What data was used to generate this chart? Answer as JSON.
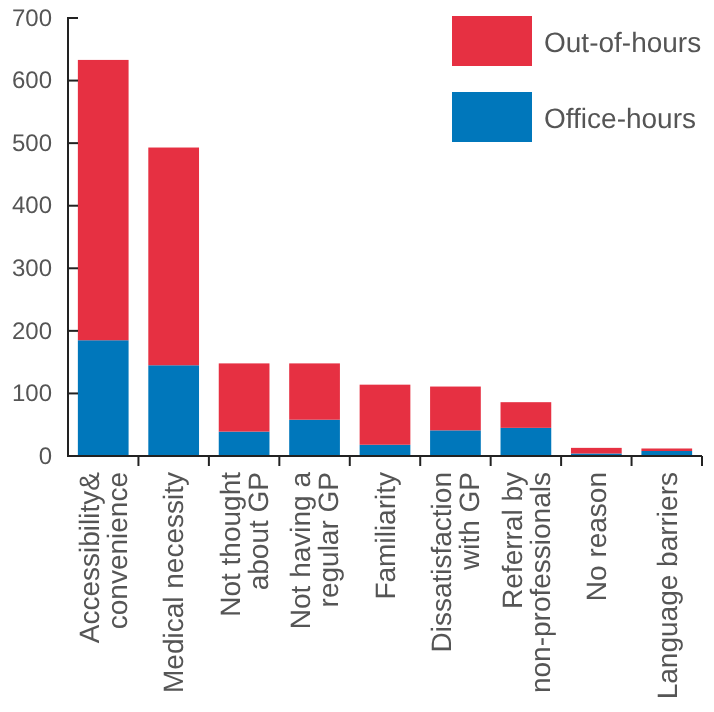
{
  "chart_data": {
    "type": "bar",
    "stacked": true,
    "categories": [
      "Accessibility&\nconvenience",
      "Medical necessity",
      "Not thought\nabout GP",
      "Not having a\nregular GP",
      "Familiarity",
      "Dissatisfaction\nwith GP",
      "Referral by\nnon-professionals",
      "No reason",
      "Language barriers"
    ],
    "series": [
      {
        "name": "Office-hours",
        "color": "#0077bb",
        "values": [
          185,
          145,
          39,
          58,
          18,
          41,
          45,
          4,
          8
        ]
      },
      {
        "name": "Out-of-hours",
        "color": "#e63042",
        "values": [
          448,
          348,
          109,
          90,
          96,
          70,
          41,
          9,
          4
        ]
      }
    ],
    "ylim": [
      0,
      700
    ],
    "yticks": [
      0,
      100,
      200,
      300,
      400,
      500,
      600,
      700
    ],
    "legend": "top right",
    "grid": false
  }
}
